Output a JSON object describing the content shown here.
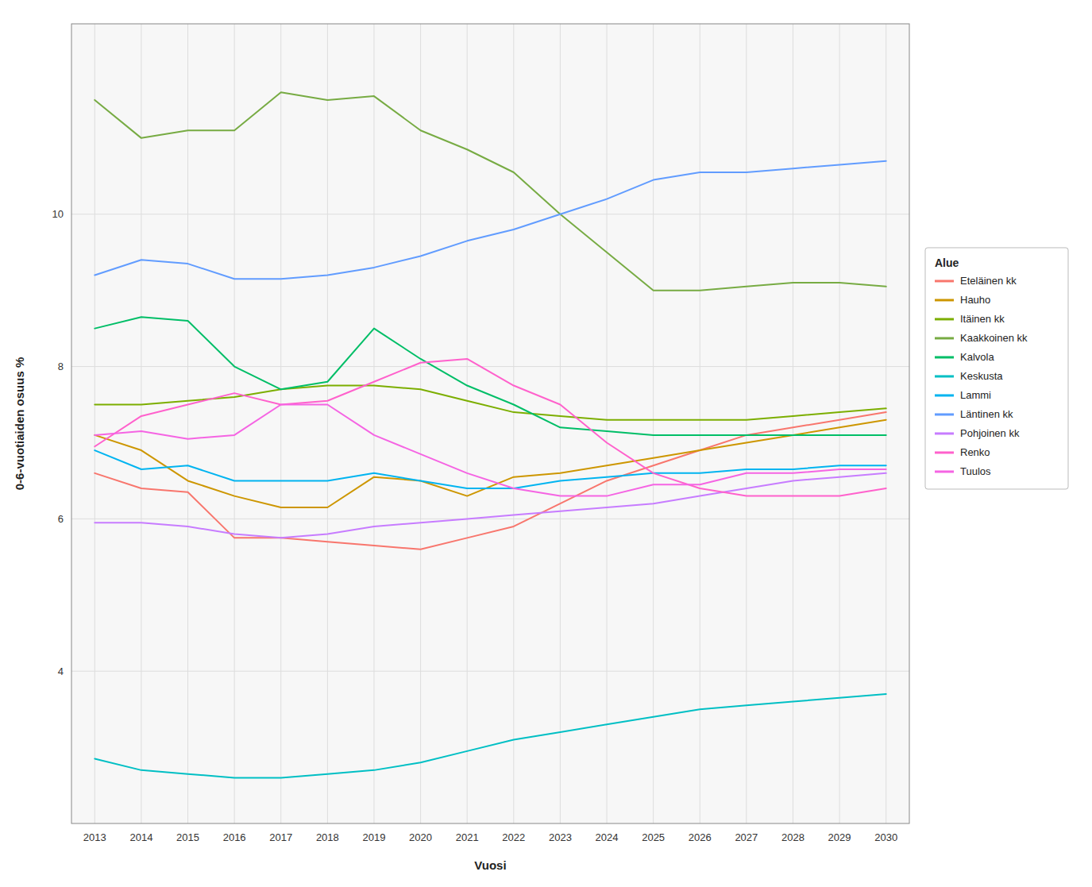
{
  "chart_data": {
    "type": "line",
    "x_label": "Vuosi",
    "y_label": "0-6-vuotiaiden osuus %",
    "legend_title": "Alue",
    "x": [
      2013,
      2014,
      2015,
      2016,
      2017,
      2018,
      2019,
      2020,
      2021,
      2022,
      2023,
      2024,
      2025,
      2026,
      2027,
      2028,
      2029,
      2030
    ],
    "series": [
      {
        "name": "Eteläinen kk",
        "color": "#F8766D",
        "values": [
          6.6,
          6.4,
          6.35,
          5.75,
          5.75,
          5.7,
          5.65,
          5.6,
          5.75,
          5.9,
          6.2,
          6.5,
          6.7,
          6.9,
          7.1,
          7.2,
          7.3,
          7.4
        ]
      },
      {
        "name": "Hauho",
        "color": "#CD9600",
        "values": [
          7.1,
          6.9,
          6.5,
          6.3,
          6.15,
          6.15,
          6.55,
          6.5,
          6.3,
          6.55,
          6.6,
          6.7,
          6.8,
          6.9,
          7.0,
          7.1,
          7.2,
          7.3
        ]
      },
      {
        "name": "Itäinen kk",
        "color": "#7CAE00",
        "values": [
          7.5,
          7.5,
          7.55,
          7.6,
          7.7,
          7.75,
          7.75,
          7.7,
          7.55,
          7.4,
          7.35,
          7.3,
          7.3,
          7.3,
          7.3,
          7.35,
          7.4,
          7.45
        ]
      },
      {
        "name": "Kaakkoinen kk",
        "color": "#77AB43",
        "values": [
          11.5,
          11.0,
          11.1,
          11.1,
          11.6,
          11.5,
          11.55,
          11.1,
          10.85,
          10.55,
          10.0,
          9.5,
          9.0,
          9.0,
          9.05,
          9.1,
          9.1,
          9.05
        ]
      },
      {
        "name": "Kalvola",
        "color": "#00BE67",
        "values": [
          8.5,
          8.65,
          8.6,
          8.0,
          7.7,
          7.8,
          8.5,
          8.1,
          7.75,
          7.5,
          7.2,
          7.15,
          7.1,
          7.1,
          7.1,
          7.1,
          7.1,
          7.1
        ]
      },
      {
        "name": "Keskusta",
        "color": "#00BFC4",
        "values": [
          2.85,
          2.7,
          2.65,
          2.6,
          2.6,
          2.65,
          2.7,
          2.8,
          2.95,
          3.1,
          3.2,
          3.3,
          3.4,
          3.5,
          3.55,
          3.6,
          3.65,
          3.7
        ]
      },
      {
        "name": "Lammi",
        "color": "#00B4F0",
        "values": [
          6.9,
          6.65,
          6.7,
          6.5,
          6.5,
          6.5,
          6.6,
          6.5,
          6.4,
          6.4,
          6.5,
          6.55,
          6.6,
          6.6,
          6.65,
          6.65,
          6.7,
          6.7
        ]
      },
      {
        "name": "Läntinen kk",
        "color": "#619CFF",
        "values": [
          9.2,
          9.4,
          9.35,
          9.15,
          9.15,
          9.2,
          9.3,
          9.45,
          9.65,
          9.8,
          10.0,
          10.2,
          10.45,
          10.55,
          10.55,
          10.6,
          10.65,
          10.7
        ]
      },
      {
        "name": "Pohjoinen kk",
        "color": "#C77CFF",
        "values": [
          5.95,
          5.95,
          5.9,
          5.8,
          5.75,
          5.8,
          5.9,
          5.95,
          6.0,
          6.05,
          6.1,
          6.15,
          6.2,
          6.3,
          6.4,
          6.5,
          6.55,
          6.6
        ]
      },
      {
        "name": "Renko",
        "color": "#FF61CC",
        "values": [
          6.95,
          7.35,
          7.5,
          7.65,
          7.5,
          7.55,
          7.8,
          8.05,
          8.1,
          7.75,
          7.5,
          7.0,
          6.6,
          6.4,
          6.3,
          6.3,
          6.3,
          6.4
        ]
      },
      {
        "name": "Tuulos",
        "color": "#F564E3",
        "values": [
          7.1,
          7.15,
          7.05,
          7.1,
          7.5,
          7.5,
          7.1,
          6.85,
          6.6,
          6.4,
          6.3,
          6.3,
          6.45,
          6.45,
          6.6,
          6.6,
          6.65,
          6.65
        ]
      }
    ],
    "xlim": [
      2012.5,
      2030.5
    ],
    "xticks": [
      2013,
      2014,
      2015,
      2016,
      2017,
      2018,
      2019,
      2020,
      2021,
      2022,
      2023,
      2024,
      2025,
      2026,
      2027,
      2028,
      2029,
      2030
    ],
    "ylim": [
      2.0,
      12.5
    ],
    "yticks": [
      4,
      6,
      8,
      10
    ],
    "grid": true,
    "legend": "right"
  }
}
